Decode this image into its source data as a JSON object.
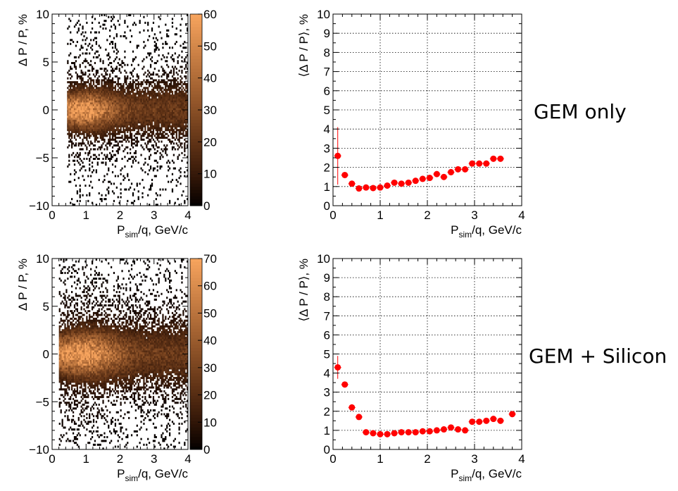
{
  "row_labels": [
    "GEM only",
    "GEM + Silicon"
  ],
  "colors": {
    "marker": "#ff0000",
    "heat_low": "#000000",
    "heat_high": "#f7a45e",
    "grid": "#000000"
  },
  "chart_data": [
    {
      "type": "heatmap",
      "row_label": "GEM only",
      "xlabel_main": "P",
      "xlabel_sub": "sim",
      "xlabel_tail": "/q, GeV/c",
      "ylabel": "Δ P / P, %",
      "xlim": [
        0,
        4
      ],
      "ylim": [
        -10,
        10
      ],
      "xticks": [
        0,
        1,
        2,
        3,
        4
      ],
      "yticks": [
        -10,
        -5,
        0,
        5,
        10
      ],
      "colorbar": {
        "min": 0,
        "max": 60,
        "ticks": [
          0,
          10,
          20,
          30,
          40,
          50,
          60
        ]
      },
      "x_start": 0.45,
      "core_z": 60,
      "band": "narrow"
    },
    {
      "type": "scatter",
      "row_label": "GEM only",
      "xlabel_main": "P",
      "xlabel_sub": "sim",
      "xlabel_tail": "/q, GeV/c",
      "ylabel": "⟨Δ P / P⟩, %",
      "xlim": [
        0,
        4
      ],
      "ylim": [
        0,
        10
      ],
      "xticks": [
        0,
        1,
        2,
        3,
        4
      ],
      "yticks": [
        0,
        1,
        2,
        3,
        4,
        5,
        6,
        7,
        8,
        9,
        10
      ],
      "grid": true,
      "series": [
        {
          "x": [
            0.1,
            0.25,
            0.4,
            0.55,
            0.7,
            0.85,
            1.0,
            1.15,
            1.3,
            1.45,
            1.6,
            1.75,
            1.9,
            2.05,
            2.2,
            2.35,
            2.5,
            2.65,
            2.8,
            2.95,
            3.1,
            3.25,
            3.4,
            3.55
          ],
          "y": [
            2.6,
            1.6,
            1.15,
            0.9,
            0.95,
            0.92,
            0.95,
            1.05,
            1.2,
            1.15,
            1.2,
            1.3,
            1.4,
            1.45,
            1.65,
            1.5,
            1.75,
            1.9,
            1.9,
            2.2,
            2.2,
            2.2,
            2.45,
            2.45
          ],
          "err": [
            1.5,
            0.12,
            0.08,
            0.06,
            0.06,
            0.05,
            0.05,
            0.05,
            0.06,
            0.06,
            0.06,
            0.06,
            0.06,
            0.06,
            0.08,
            0.06,
            0.08,
            0.08,
            0.08,
            0.08,
            0.08,
            0.08,
            0.1,
            0.1
          ]
        }
      ]
    },
    {
      "type": "heatmap",
      "row_label": "GEM + Silicon",
      "xlabel_main": "P",
      "xlabel_sub": "sim",
      "xlabel_tail": "/q, GeV/c",
      "ylabel": "Δ P / P, %",
      "xlim": [
        0,
        4
      ],
      "ylim": [
        -10,
        10
      ],
      "xticks": [
        0,
        1,
        2,
        3,
        4
      ],
      "yticks": [
        -10,
        -5,
        0,
        5,
        10
      ],
      "colorbar": {
        "min": 0,
        "max": 70,
        "ticks": [
          0,
          10,
          20,
          30,
          40,
          50,
          60,
          70
        ]
      },
      "x_start": 0.2,
      "core_z": 70,
      "band": "wide"
    },
    {
      "type": "scatter",
      "row_label": "GEM + Silicon",
      "xlabel_main": "P",
      "xlabel_sub": "sim",
      "xlabel_tail": "/q, GeV/c",
      "ylabel": "⟨Δ P / P⟩, %",
      "xlim": [
        0,
        4
      ],
      "ylim": [
        0,
        10
      ],
      "xticks": [
        0,
        1,
        2,
        3,
        4
      ],
      "yticks": [
        0,
        1,
        2,
        3,
        4,
        5,
        6,
        7,
        8,
        9,
        10
      ],
      "grid": true,
      "series": [
        {
          "x": [
            0.1,
            0.25,
            0.4,
            0.55,
            0.7,
            0.85,
            1.0,
            1.15,
            1.3,
            1.45,
            1.6,
            1.75,
            1.9,
            2.05,
            2.2,
            2.35,
            2.5,
            2.65,
            2.8,
            2.95,
            3.1,
            3.25,
            3.4,
            3.55,
            3.8
          ],
          "y": [
            4.3,
            3.4,
            2.2,
            1.7,
            0.9,
            0.85,
            0.8,
            0.8,
            0.85,
            0.9,
            0.9,
            0.9,
            0.95,
            0.95,
            1.0,
            1.05,
            1.15,
            1.05,
            1.0,
            1.45,
            1.45,
            1.5,
            1.6,
            1.5,
            1.85
          ],
          "err": [
            0.6,
            0.1,
            0.1,
            0.08,
            0.06,
            0.06,
            0.05,
            0.05,
            0.05,
            0.05,
            0.05,
            0.05,
            0.05,
            0.05,
            0.05,
            0.05,
            0.06,
            0.06,
            0.06,
            0.08,
            0.08,
            0.08,
            0.08,
            0.08,
            0.1
          ]
        }
      ]
    }
  ]
}
